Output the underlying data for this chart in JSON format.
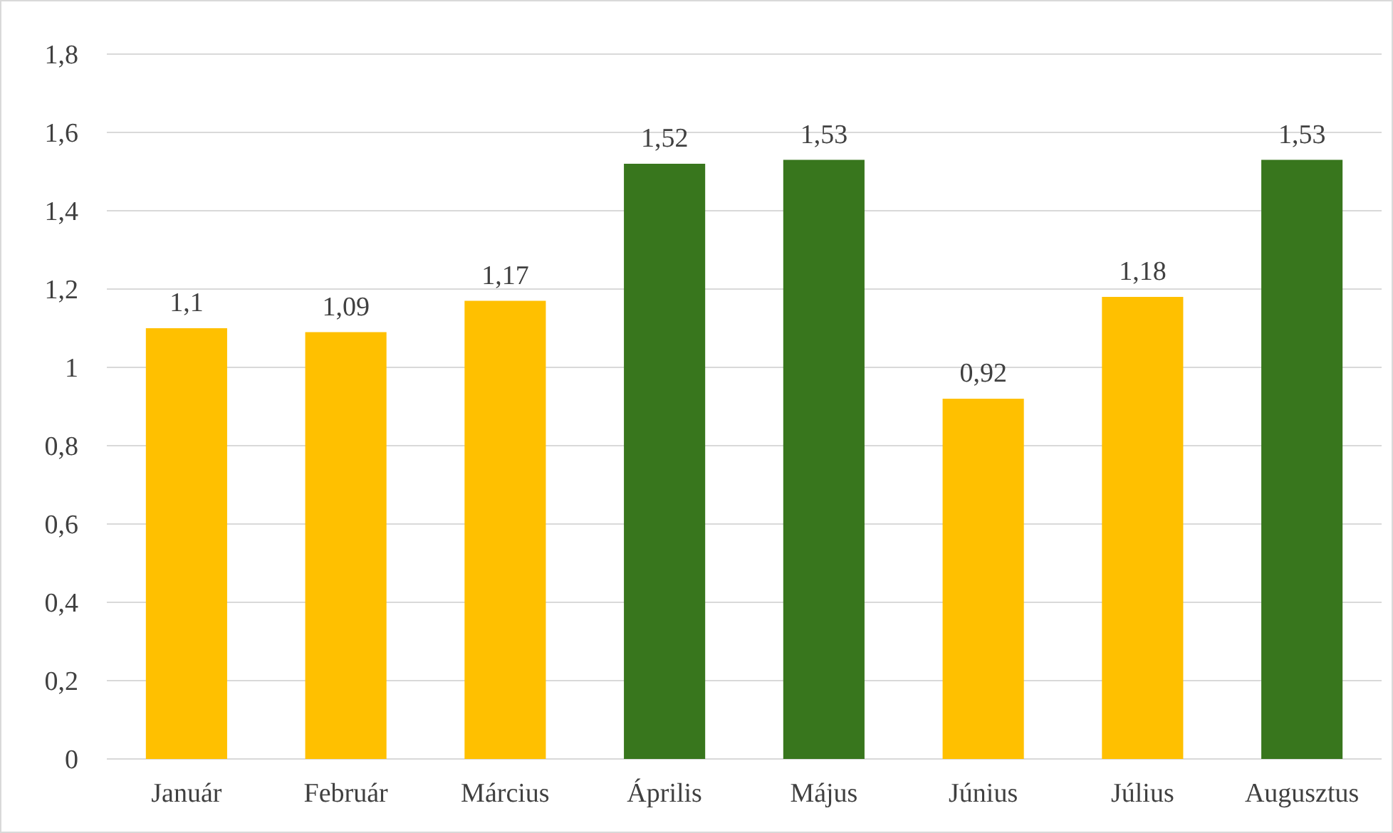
{
  "chart_data": {
    "type": "bar",
    "categories": [
      "Január",
      "Február",
      "Március",
      "Április",
      "Május",
      "Június",
      "Július",
      "Augusztus"
    ],
    "values": [
      1.1,
      1.09,
      1.17,
      1.52,
      1.53,
      0.92,
      1.18,
      1.53
    ],
    "colors": [
      "#ffc000",
      "#ffc000",
      "#ffc000",
      "#38761d",
      "#38761d",
      "#ffc000",
      "#ffc000",
      "#38761d"
    ],
    "value_labels": [
      "1,1",
      "1,09",
      "1,17",
      "1,52",
      "1,53",
      "0,92",
      "1,18",
      "1,53"
    ],
    "ylim": [
      0,
      1.8
    ],
    "yticks": [
      0,
      {
        "value": 0.2,
        "label": "0,2"
      },
      {
        "value": 0.4,
        "label": "0,4"
      },
      {
        "value": 0.6,
        "label": "0,6"
      },
      {
        "value": 0.8,
        "label": "0,8"
      },
      1,
      {
        "value": 1.2,
        "label": "1,2"
      },
      {
        "value": 1.4,
        "label": "1,4"
      },
      {
        "value": 1.6,
        "label": "1,6"
      },
      {
        "value": 1.8,
        "label": "1,8"
      }
    ],
    "grid": "y"
  }
}
